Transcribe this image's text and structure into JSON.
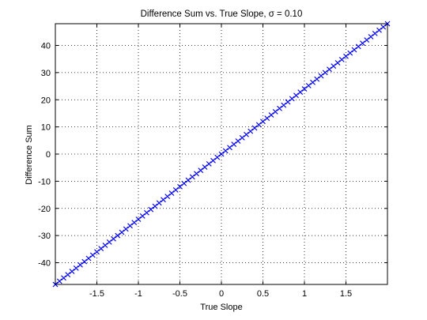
{
  "chart_data": {
    "type": "scatter",
    "title": "Difference Sum vs. True Slope, σ = 0.10",
    "xlabel": "True Slope",
    "ylabel": "Difference Sum",
    "xlim": [
      -2,
      2
    ],
    "ylim": [
      -48,
      48
    ],
    "xticks": [
      -1.5,
      -1,
      -0.5,
      0,
      0.5,
      1,
      1.5
    ],
    "xtick_labels": [
      "-1.5",
      "-1",
      "-0.5",
      "0",
      "0.5",
      "1",
      "1.5"
    ],
    "yticks": [
      -40,
      -30,
      -20,
      -10,
      0,
      10,
      20,
      30,
      40
    ],
    "ytick_labels": [
      "-40",
      "-30",
      "-20",
      "-10",
      "0",
      "10",
      "20",
      "30",
      "40"
    ],
    "grid": true,
    "marker": "x",
    "series": [
      {
        "color": "#0000ff",
        "x": [
          -2.0,
          -1.95,
          -1.9,
          -1.85,
          -1.8,
          -1.75,
          -1.7,
          -1.65,
          -1.6,
          -1.55,
          -1.5,
          -1.45,
          -1.4,
          -1.35,
          -1.3,
          -1.25,
          -1.2,
          -1.15,
          -1.1,
          -1.05,
          -1.0,
          -0.95,
          -0.9,
          -0.85,
          -0.8,
          -0.75,
          -0.7,
          -0.65,
          -0.6,
          -0.55,
          -0.5,
          -0.45,
          -0.4,
          -0.35,
          -0.3,
          -0.25,
          -0.2,
          -0.15,
          -0.1,
          -0.05,
          0.0,
          0.05,
          0.1,
          0.15,
          0.2,
          0.25,
          0.3,
          0.35,
          0.4,
          0.45,
          0.5,
          0.55,
          0.6,
          0.65,
          0.7,
          0.75,
          0.8,
          0.85,
          0.9,
          0.95,
          1.0,
          1.05,
          1.1,
          1.15,
          1.2,
          1.25,
          1.3,
          1.35,
          1.4,
          1.45,
          1.5,
          1.55,
          1.6,
          1.65,
          1.7,
          1.75,
          1.8,
          1.85,
          1.9,
          1.95,
          2.0
        ],
        "y": [
          -48.0,
          -46.8,
          -45.6,
          -44.4,
          -43.2,
          -42.0,
          -40.8,
          -39.6,
          -38.4,
          -37.2,
          -36.0,
          -34.8,
          -33.6,
          -32.4,
          -31.2,
          -30.0,
          -28.8,
          -27.6,
          -26.4,
          -25.2,
          -24.0,
          -22.8,
          -21.6,
          -20.4,
          -19.2,
          -18.0,
          -16.8,
          -15.6,
          -14.4,
          -13.2,
          -12.0,
          -10.8,
          -9.6,
          -8.4,
          -7.2,
          -6.0,
          -4.8,
          -3.6,
          -2.4,
          -1.2,
          0.0,
          1.2,
          2.4,
          3.6,
          4.8,
          6.0,
          7.2,
          8.4,
          9.6,
          10.8,
          12.0,
          13.2,
          14.4,
          15.6,
          16.8,
          18.0,
          19.2,
          20.4,
          21.6,
          22.8,
          24.0,
          25.2,
          26.4,
          27.6,
          28.8,
          30.0,
          31.2,
          32.4,
          33.6,
          34.8,
          36.0,
          37.2,
          38.4,
          39.6,
          40.8,
          42.0,
          43.2,
          44.4,
          45.6,
          46.8,
          48.0
        ]
      }
    ]
  }
}
